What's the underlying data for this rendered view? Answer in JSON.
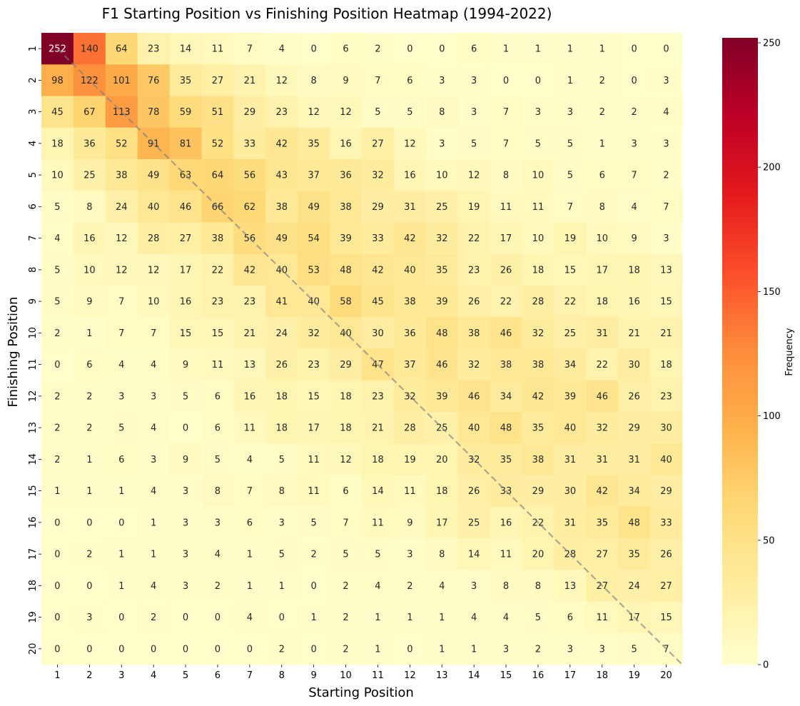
{
  "chart_data": {
    "type": "heatmap",
    "title": "F1 Starting Position vs Finishing Position Heatmap (1994-2022)",
    "xlabel": "Starting Position",
    "ylabel": "Finishing Position",
    "x_categories": [
      "1",
      "2",
      "3",
      "4",
      "5",
      "6",
      "7",
      "8",
      "9",
      "10",
      "11",
      "12",
      "13",
      "14",
      "15",
      "16",
      "17",
      "18",
      "19",
      "20"
    ],
    "y_categories": [
      "1",
      "2",
      "3",
      "4",
      "5",
      "6",
      "7",
      "8",
      "9",
      "10",
      "11",
      "12",
      "13",
      "14",
      "15",
      "16",
      "17",
      "18",
      "19",
      "20"
    ],
    "values": [
      [
        252,
        140,
        64,
        23,
        14,
        11,
        7,
        4,
        0,
        6,
        2,
        0,
        0,
        6,
        1,
        1,
        1,
        1,
        0,
        0
      ],
      [
        98,
        122,
        101,
        76,
        35,
        27,
        21,
        12,
        8,
        9,
        7,
        6,
        3,
        3,
        0,
        0,
        1,
        2,
        0,
        3
      ],
      [
        45,
        67,
        113,
        78,
        59,
        51,
        29,
        23,
        12,
        12,
        5,
        5,
        8,
        3,
        7,
        3,
        3,
        2,
        2,
        4
      ],
      [
        18,
        36,
        52,
        91,
        81,
        52,
        33,
        42,
        35,
        16,
        27,
        12,
        3,
        5,
        7,
        5,
        5,
        1,
        3,
        3
      ],
      [
        10,
        25,
        38,
        49,
        63,
        64,
        56,
        43,
        37,
        36,
        32,
        16,
        10,
        12,
        8,
        10,
        5,
        6,
        7,
        2
      ],
      [
        5,
        8,
        24,
        40,
        46,
        66,
        62,
        38,
        49,
        38,
        29,
        31,
        25,
        19,
        11,
        11,
        7,
        8,
        4,
        7
      ],
      [
        4,
        16,
        12,
        28,
        27,
        38,
        56,
        49,
        54,
        39,
        33,
        42,
        32,
        22,
        17,
        10,
        19,
        10,
        9,
        3
      ],
      [
        5,
        10,
        12,
        12,
        17,
        22,
        42,
        40,
        53,
        48,
        42,
        40,
        35,
        23,
        26,
        18,
        15,
        17,
        18,
        13
      ],
      [
        5,
        9,
        7,
        10,
        16,
        23,
        23,
        41,
        40,
        58,
        45,
        38,
        39,
        26,
        22,
        28,
        22,
        18,
        16,
        15
      ],
      [
        2,
        1,
        7,
        7,
        15,
        15,
        21,
        24,
        32,
        40,
        30,
        36,
        48,
        38,
        46,
        32,
        25,
        31,
        21,
        21
      ],
      [
        0,
        6,
        4,
        4,
        9,
        11,
        13,
        26,
        23,
        29,
        47,
        37,
        46,
        32,
        38,
        38,
        34,
        22,
        30,
        18
      ],
      [
        2,
        2,
        3,
        3,
        5,
        6,
        16,
        18,
        15,
        18,
        23,
        32,
        39,
        46,
        34,
        42,
        39,
        46,
        26,
        23
      ],
      [
        2,
        2,
        5,
        4,
        0,
        6,
        11,
        18,
        17,
        18,
        21,
        28,
        25,
        40,
        48,
        35,
        40,
        32,
        29,
        30
      ],
      [
        2,
        1,
        6,
        3,
        9,
        5,
        4,
        5,
        11,
        12,
        18,
        19,
        20,
        32,
        35,
        38,
        31,
        31,
        31,
        40
      ],
      [
        1,
        1,
        1,
        4,
        3,
        8,
        7,
        8,
        11,
        6,
        14,
        11,
        18,
        26,
        33,
        29,
        30,
        42,
        34,
        29
      ],
      [
        0,
        0,
        0,
        1,
        3,
        3,
        6,
        3,
        5,
        7,
        11,
        9,
        17,
        25,
        16,
        22,
        31,
        35,
        48,
        33
      ],
      [
        0,
        2,
        1,
        1,
        3,
        4,
        1,
        5,
        2,
        5,
        5,
        3,
        8,
        14,
        11,
        20,
        28,
        27,
        35,
        26
      ],
      [
        0,
        0,
        1,
        4,
        3,
        2,
        1,
        1,
        0,
        2,
        4,
        2,
        4,
        3,
        8,
        8,
        13,
        27,
        24,
        27
      ],
      [
        0,
        3,
        0,
        2,
        0,
        0,
        4,
        0,
        1,
        2,
        1,
        1,
        1,
        4,
        4,
        5,
        6,
        11,
        17,
        15
      ],
      [
        0,
        0,
        0,
        0,
        0,
        0,
        0,
        2,
        0,
        2,
        1,
        0,
        1,
        1,
        3,
        2,
        3,
        3,
        5,
        7
      ]
    ],
    "colorbar": {
      "label": "Frequency",
      "min": 0,
      "max": 252,
      "ticks": [
        0,
        50,
        100,
        150,
        200,
        250
      ]
    },
    "colormap": "YlOrRd",
    "colormap_stops": [
      "#ffffcc",
      "#ffeda0",
      "#fed976",
      "#feb24c",
      "#fd8d3c",
      "#fc4e2a",
      "#e31a1c",
      "#bd0026",
      "#800026"
    ],
    "diagonal_line": true,
    "diagonal_color": "#808080"
  }
}
